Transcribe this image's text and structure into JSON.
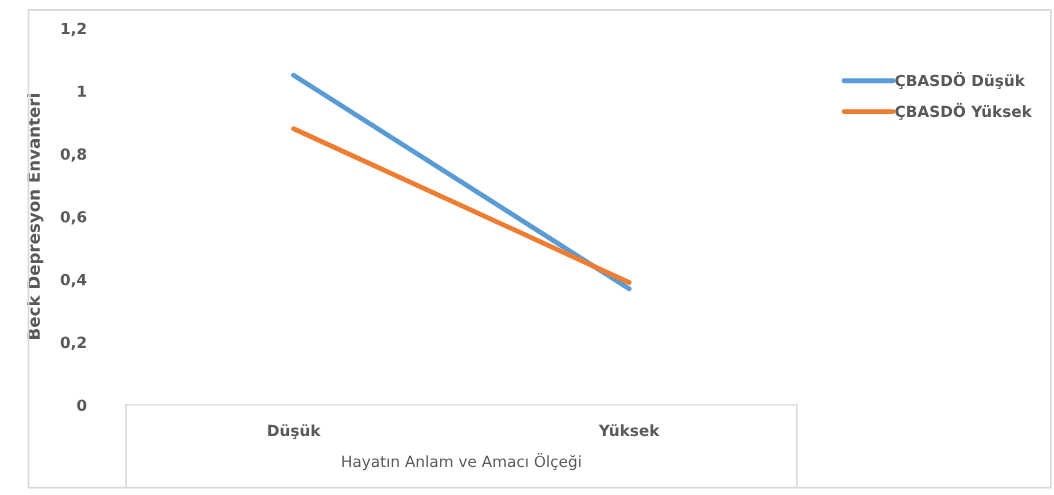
{
  "chart_data": {
    "type": "line",
    "xlabel": "Hayatın Anlam ve Amacı Ölçeği",
    "ylabel": "Beck Depresyon Envanteri",
    "categories": [
      "Düşük",
      "Yüksek"
    ],
    "series": [
      {
        "name": "ÇBASDÖ Düşük",
        "color": "#5b9bd5",
        "values": [
          1.05,
          0.37
        ]
      },
      {
        "name": "ÇBASDÖ Yüksek",
        "color": "#ed7d31",
        "values": [
          0.88,
          0.39
        ]
      }
    ],
    "ylim": [
      0,
      1.2
    ],
    "yticks": [
      0,
      {
        "value": 0.2,
        "label": "0,2"
      },
      {
        "value": 0.4,
        "label": "0,4"
      },
      {
        "value": 0.6,
        "label": "0,6"
      },
      {
        "value": 0.8,
        "label": "0,8"
      },
      1,
      {
        "value": 1.2,
        "label": "1,2"
      }
    ],
    "grid": false,
    "legend": "top right",
    "marker": "none",
    "line_style": "solid"
  }
}
